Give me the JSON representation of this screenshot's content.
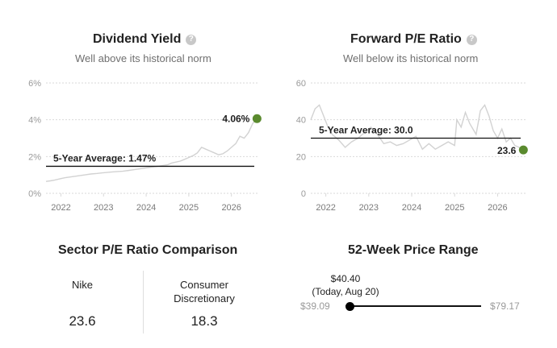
{
  "dividend_yield": {
    "title": "Dividend Yield",
    "subtitle": "Well above its historical norm",
    "avg_label": "5-Year Average: 1.47%",
    "current_label": "4.06%",
    "colors": {
      "series": "#d2d2d2",
      "current_dot": "#5a8a2e",
      "avg_line": "#111111",
      "grid": "#d9d9d9"
    }
  },
  "forward_pe": {
    "title": "Forward P/E Ratio",
    "subtitle": "Well below its historical norm",
    "avg_label": "5-Year Average: 30.0",
    "current_label": "23.6"
  },
  "sector_pe": {
    "title": "Sector P/E Ratio Comparison",
    "left_name": "Nike",
    "left_value": "23.6",
    "right_name_line1": "Consumer",
    "right_name_line2": "Discretionary",
    "right_value": "18.3"
  },
  "price_range": {
    "title": "52-Week Price Range",
    "current_price": "$40.40",
    "current_note": "(Today, Aug 20)",
    "low": "$39.09",
    "high": "$79.17",
    "current_fraction": 0.033
  },
  "chart_data": [
    {
      "type": "line",
      "title": "Dividend Yield",
      "ylabel": "",
      "xlabel": "",
      "y_ticks": [
        "0%",
        "2%",
        "4%",
        "6%"
      ],
      "x_ticks": [
        "2022",
        "2023",
        "2024",
        "2025",
        "2026"
      ],
      "ylim": [
        0,
        6
      ],
      "xlim": [
        2021.65,
        2026.65
      ],
      "grid": true,
      "reference_line": 1.47,
      "current_value": 4.06,
      "series": [
        {
          "x": [
            2021.65,
            2021.75,
            2021.85,
            2022.0,
            2022.1,
            2022.25,
            2022.4,
            2022.55,
            2022.7,
            2022.85,
            2023.0,
            2023.15,
            2023.3,
            2023.45,
            2023.6,
            2023.75,
            2023.9,
            2024.05,
            2024.2,
            2024.35,
            2024.5,
            2024.6,
            2024.7,
            2024.8,
            2024.9,
            2025.0,
            2025.1,
            2025.2,
            2025.3,
            2025.4,
            2025.5,
            2025.6,
            2025.7,
            2025.8,
            2025.9,
            2026.0,
            2026.1,
            2026.2,
            2026.3,
            2026.4,
            2026.5,
            2026.6
          ],
          "values": [
            0.65,
            0.68,
            0.72,
            0.8,
            0.85,
            0.9,
            0.95,
            1.0,
            1.05,
            1.08,
            1.12,
            1.15,
            1.18,
            1.2,
            1.25,
            1.3,
            1.35,
            1.4,
            1.45,
            1.5,
            1.55,
            1.65,
            1.7,
            1.75,
            1.85,
            1.95,
            2.05,
            2.2,
            2.5,
            2.4,
            2.3,
            2.2,
            2.1,
            2.15,
            2.3,
            2.5,
            2.7,
            3.1,
            3.0,
            3.3,
            3.8,
            4.06
          ]
        }
      ]
    },
    {
      "type": "line",
      "title": "Forward P/E Ratio",
      "ylabel": "",
      "xlabel": "",
      "y_ticks": [
        "0",
        "20",
        "40",
        "60"
      ],
      "x_ticks": [
        "2022",
        "2023",
        "2024",
        "2025",
        "2026"
      ],
      "ylim": [
        0,
        60
      ],
      "xlim": [
        2021.65,
        2026.65
      ],
      "grid": true,
      "reference_line": 30.0,
      "current_value": 23.6,
      "series": [
        {
          "x": [
            2021.65,
            2021.75,
            2021.85,
            2021.95,
            2022.05,
            2022.15,
            2022.3,
            2022.45,
            2022.6,
            2022.75,
            2022.9,
            2023.05,
            2023.2,
            2023.35,
            2023.5,
            2023.65,
            2023.8,
            2023.95,
            2024.1,
            2024.25,
            2024.4,
            2024.55,
            2024.7,
            2024.85,
            2025.0,
            2025.05,
            2025.15,
            2025.25,
            2025.35,
            2025.5,
            2025.6,
            2025.7,
            2025.8,
            2025.9,
            2026.0,
            2026.1,
            2026.2,
            2026.3,
            2026.4,
            2026.5,
            2026.6
          ],
          "values": [
            40,
            46,
            48,
            42,
            36,
            32,
            29,
            25,
            28,
            30,
            33,
            36,
            32,
            27,
            28,
            26,
            27,
            29,
            31,
            24,
            27,
            24,
            26,
            28,
            26,
            40,
            36,
            44,
            38,
            32,
            45,
            48,
            42,
            34,
            30,
            35,
            28,
            30,
            26,
            25,
            23.6
          ]
        }
      ]
    }
  ]
}
